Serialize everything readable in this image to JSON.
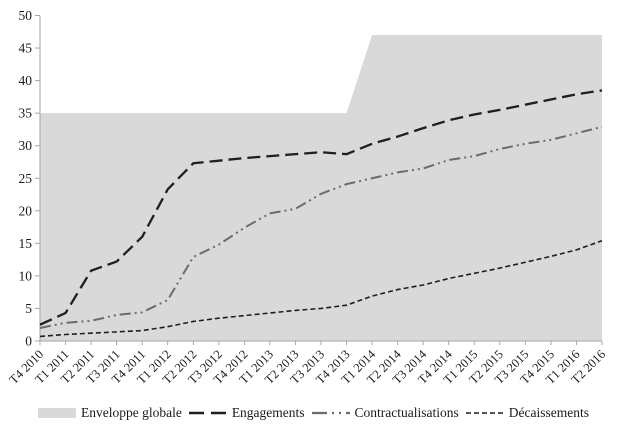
{
  "chart_data": {
    "type": "combo-area-line",
    "title": "",
    "xlabel": "",
    "ylabel": "",
    "ylim": [
      0,
      50
    ],
    "yticks": [
      0,
      5,
      10,
      15,
      20,
      25,
      30,
      35,
      40,
      45,
      50
    ],
    "grid": false,
    "legend_position": "bottom",
    "categories": [
      "T4 2010",
      "T1 2011",
      "T2 2011",
      "T3 2011",
      "T4 2011",
      "T1 2012",
      "T2 2012",
      "T3 2012",
      "T4 2012",
      "T1 2013",
      "T2 2013",
      "T3 2013",
      "T4 2013",
      "T1 2014",
      "T2 2014",
      "T3 2014",
      "T4 2014",
      "T1 2015",
      "T2 2015",
      "T3 2015",
      "T4 2015",
      "T1 2016",
      "T2 2016"
    ],
    "series": [
      {
        "name": "Enveloppe globale",
        "type": "area",
        "color": "#d9d9d9",
        "values": [
          35,
          35,
          35,
          35,
          35,
          35,
          35,
          35,
          35,
          35,
          35,
          35,
          35,
          47,
          47,
          47,
          47,
          47,
          47,
          47,
          47,
          47,
          47
        ]
      },
      {
        "name": "Engagements",
        "type": "line",
        "style": "long-dash",
        "color": "#1f1f1f",
        "values": [
          2.5,
          4.3,
          10.8,
          12.2,
          16.0,
          23.3,
          27.3,
          27.7,
          28.1,
          28.4,
          28.7,
          29.0,
          28.7,
          30.3,
          31.4,
          32.7,
          33.9,
          34.8,
          35.5,
          36.3,
          37.1,
          37.9,
          38.5
        ]
      },
      {
        "name": "Contractualisations",
        "type": "line",
        "style": "dash-dot-dot",
        "color": "#6b6b6b",
        "values": [
          2.0,
          2.8,
          3.1,
          4.0,
          4.4,
          6.3,
          12.9,
          14.8,
          17.4,
          19.6,
          20.3,
          22.6,
          24.1,
          25.0,
          25.9,
          26.5,
          27.8,
          28.4,
          29.5,
          30.3,
          30.9,
          31.9,
          32.9
        ]
      },
      {
        "name": "Décaissements",
        "type": "line",
        "style": "short-dash",
        "color": "#1f1f1f",
        "values": [
          0.7,
          1.0,
          1.2,
          1.4,
          1.6,
          2.2,
          3.0,
          3.5,
          3.9,
          4.3,
          4.7,
          5.0,
          5.5,
          6.9,
          7.9,
          8.6,
          9.6,
          10.4,
          11.2,
          12.1,
          13.0,
          14.0,
          15.4
        ]
      }
    ],
    "axis_color": "#a6a6a6",
    "label_color": "#1a1a1a"
  }
}
